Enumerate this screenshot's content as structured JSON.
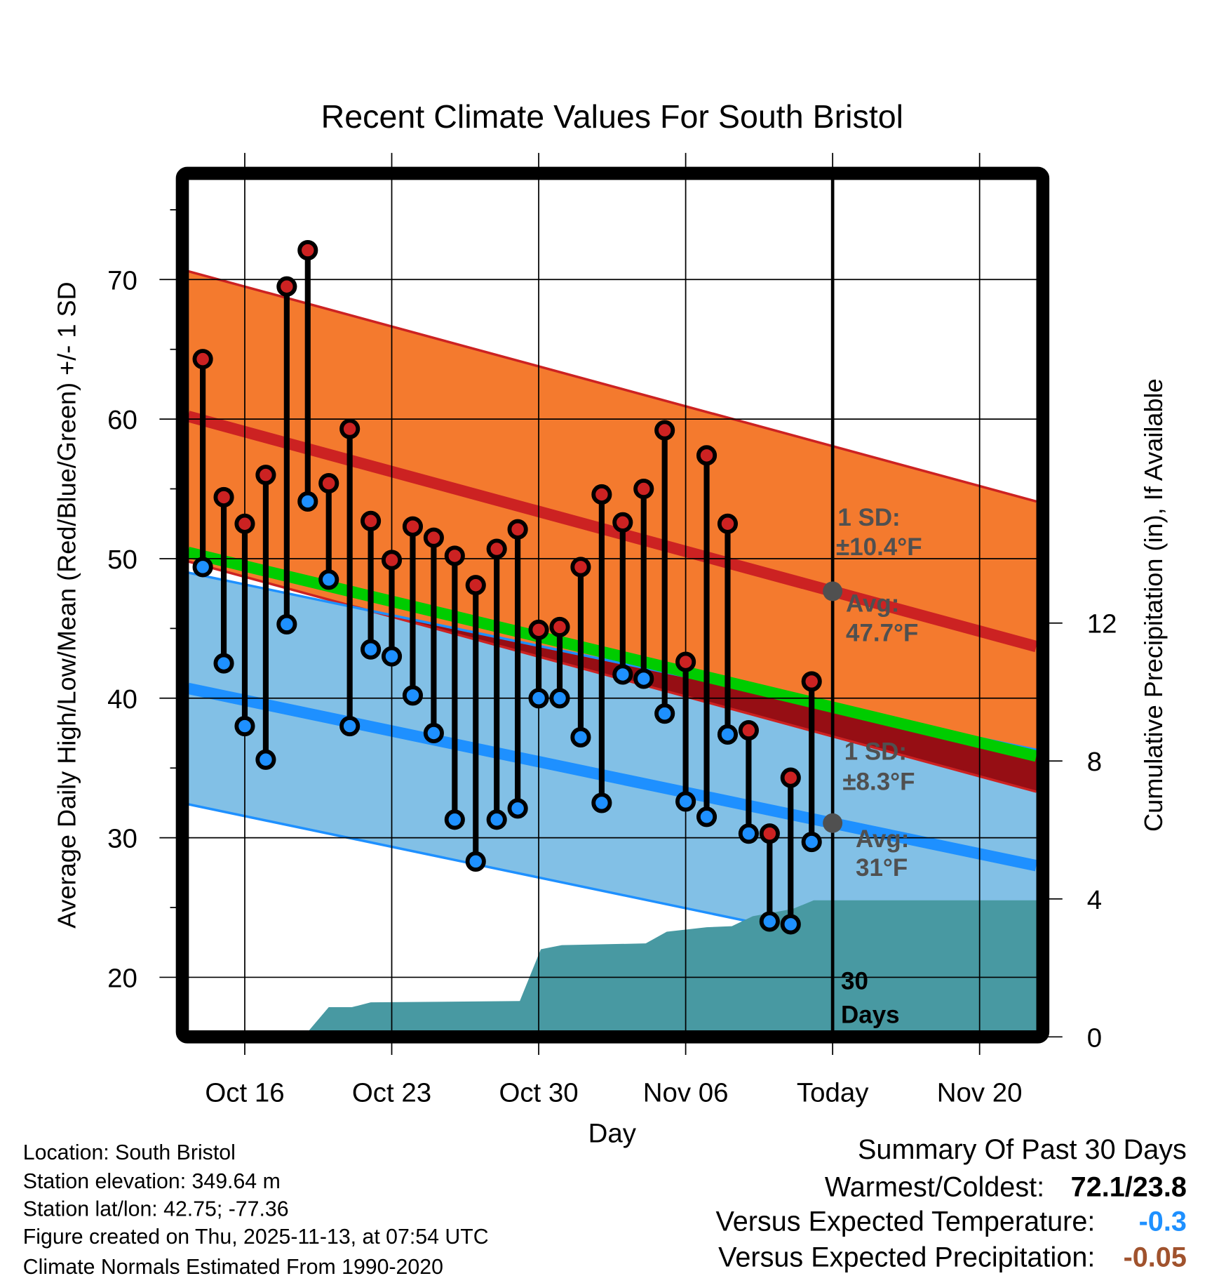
{
  "chart_data": {
    "type": "line",
    "title": "Recent Climate Values For South Bristol",
    "xlabel": "Day",
    "ylabel": "Average Daily High/Low/Mean (Red/Blue/Green) +/- 1 SD",
    "y2label": "Cumulative Precipitation (in), If Available",
    "x_units": "days since Oct 16",
    "xlim": [
      -2.7,
      37.7
    ],
    "ylim": [
      16.2,
      77.2
    ],
    "y2lim": [
      0,
      23.6
    ],
    "x_ticks": [
      {
        "x": 0,
        "label": "Oct 16"
      },
      {
        "x": 7,
        "label": "Oct 23"
      },
      {
        "x": 14,
        "label": "Oct 30"
      },
      {
        "x": 21,
        "label": "Nov 06"
      },
      {
        "x": 28,
        "label": "Today"
      },
      {
        "x": 35,
        "label": "Nov 20"
      }
    ],
    "y_ticks": [
      {
        "v": 20,
        "label": "20"
      },
      {
        "v": 30,
        "label": "30"
      },
      {
        "v": 40,
        "label": "40"
      },
      {
        "v": 50,
        "label": "50"
      },
      {
        "v": 60,
        "label": "60"
      },
      {
        "v": 70,
        "label": "70"
      }
    ],
    "y2_ticks": [
      {
        "v": 0,
        "label": "0"
      },
      {
        "v": 4,
        "label": "4"
      },
      {
        "v": 8,
        "label": "8"
      },
      {
        "v": 12,
        "label": "12"
      }
    ],
    "today_x": 28,
    "today_label_1": "30",
    "today_label_2": "Days",
    "observations": {
      "dates": [
        "Oct 14",
        "Oct 15",
        "Oct 16",
        "Oct 17",
        "Oct 18",
        "Oct 19",
        "Oct 20",
        "Oct 21",
        "Oct 22",
        "Oct 23",
        "Oct 24",
        "Oct 25",
        "Oct 26",
        "Oct 27",
        "Oct 28",
        "Oct 29",
        "Oct 30",
        "Oct 31",
        "Nov 01",
        "Nov 02",
        "Nov 03",
        "Nov 04",
        "Nov 05",
        "Nov 06",
        "Nov 07",
        "Nov 08",
        "Nov 09",
        "Nov 10",
        "Nov 11",
        "Nov 12"
      ],
      "x_start": -2,
      "highs": [
        64.3,
        54.4,
        52.5,
        56.0,
        69.5,
        72.1,
        55.4,
        59.3,
        52.7,
        49.9,
        52.3,
        51.5,
        50.2,
        48.1,
        50.7,
        52.1,
        44.9,
        45.1,
        49.4,
        54.6,
        52.6,
        55.0,
        59.2,
        42.6,
        57.4,
        52.5,
        37.7,
        30.3,
        34.3,
        41.2
      ],
      "lows": [
        49.4,
        42.5,
        38.0,
        35.6,
        45.3,
        54.1,
        48.5,
        38.0,
        43.5,
        43.0,
        40.2,
        37.5,
        31.3,
        28.3,
        31.3,
        32.1,
        40.0,
        40.0,
        37.2,
        32.5,
        41.7,
        41.4,
        38.9,
        32.6,
        31.5,
        37.4,
        30.3,
        24.0,
        23.8,
        29.7
      ]
    },
    "normals": {
      "high_avg_start": 60.2,
      "high_avg_end": 43.7,
      "high_sd": 10.4,
      "low_avg_start": 40.7,
      "low_avg_end": 28.0,
      "low_sd": 8.3
    },
    "precip_cumulative": [
      [
        2.8,
        0
      ],
      [
        4,
        0.86
      ],
      [
        5.1,
        0.86
      ],
      [
        6,
        1.0
      ],
      [
        13.1,
        1.04
      ],
      [
        14.1,
        2.54
      ],
      [
        15.1,
        2.66
      ],
      [
        19.1,
        2.71
      ],
      [
        20.1,
        3.05
      ],
      [
        22,
        3.18
      ],
      [
        23.2,
        3.21
      ],
      [
        24.2,
        3.5
      ],
      [
        26.1,
        3.71
      ],
      [
        27.1,
        3.96
      ],
      [
        37.7,
        3.96
      ]
    ],
    "annotations": {
      "high_sd_1": "1 SD:",
      "high_sd_2": "±10.4°F",
      "high_avg_1": "Avg:",
      "high_avg_2": "47.7°F",
      "low_sd_1": "1 SD:",
      "low_sd_2": "±8.3°F",
      "low_avg_1": "Avg:",
      "low_avg_2": "31°F"
    },
    "colors": {
      "high_band": "#f47a2e",
      "high_line": "#cc2222",
      "low_band": "#82c0e6",
      "low_line": "#1e90ff",
      "overlap": "#960e14",
      "mean_line": "#00cc00",
      "precip": "#4899a2",
      "high_dot": "#cc2222",
      "low_dot": "#1e90ff",
      "annotation": "#505050"
    }
  },
  "footer": {
    "location": "Location: South Bristol",
    "elevation": "Station elevation: 349.64 m",
    "latlon": "Station lat/lon: 42.75; -77.36",
    "created": "Figure created on Thu, 2025-11-13, at 07:54 UTC",
    "normals": "Climate Normals Estimated From 1990-2020"
  },
  "summary": {
    "title": "Summary Of Past 30 Days",
    "warm_cold_label": "Warmest/Coldest:",
    "warm_cold_value": "72.1/23.8",
    "temp_label": "Versus Expected Temperature:",
    "temp_value": "-0.3",
    "precip_label": "Versus Expected Precipitation:",
    "precip_value": "-0.05"
  }
}
